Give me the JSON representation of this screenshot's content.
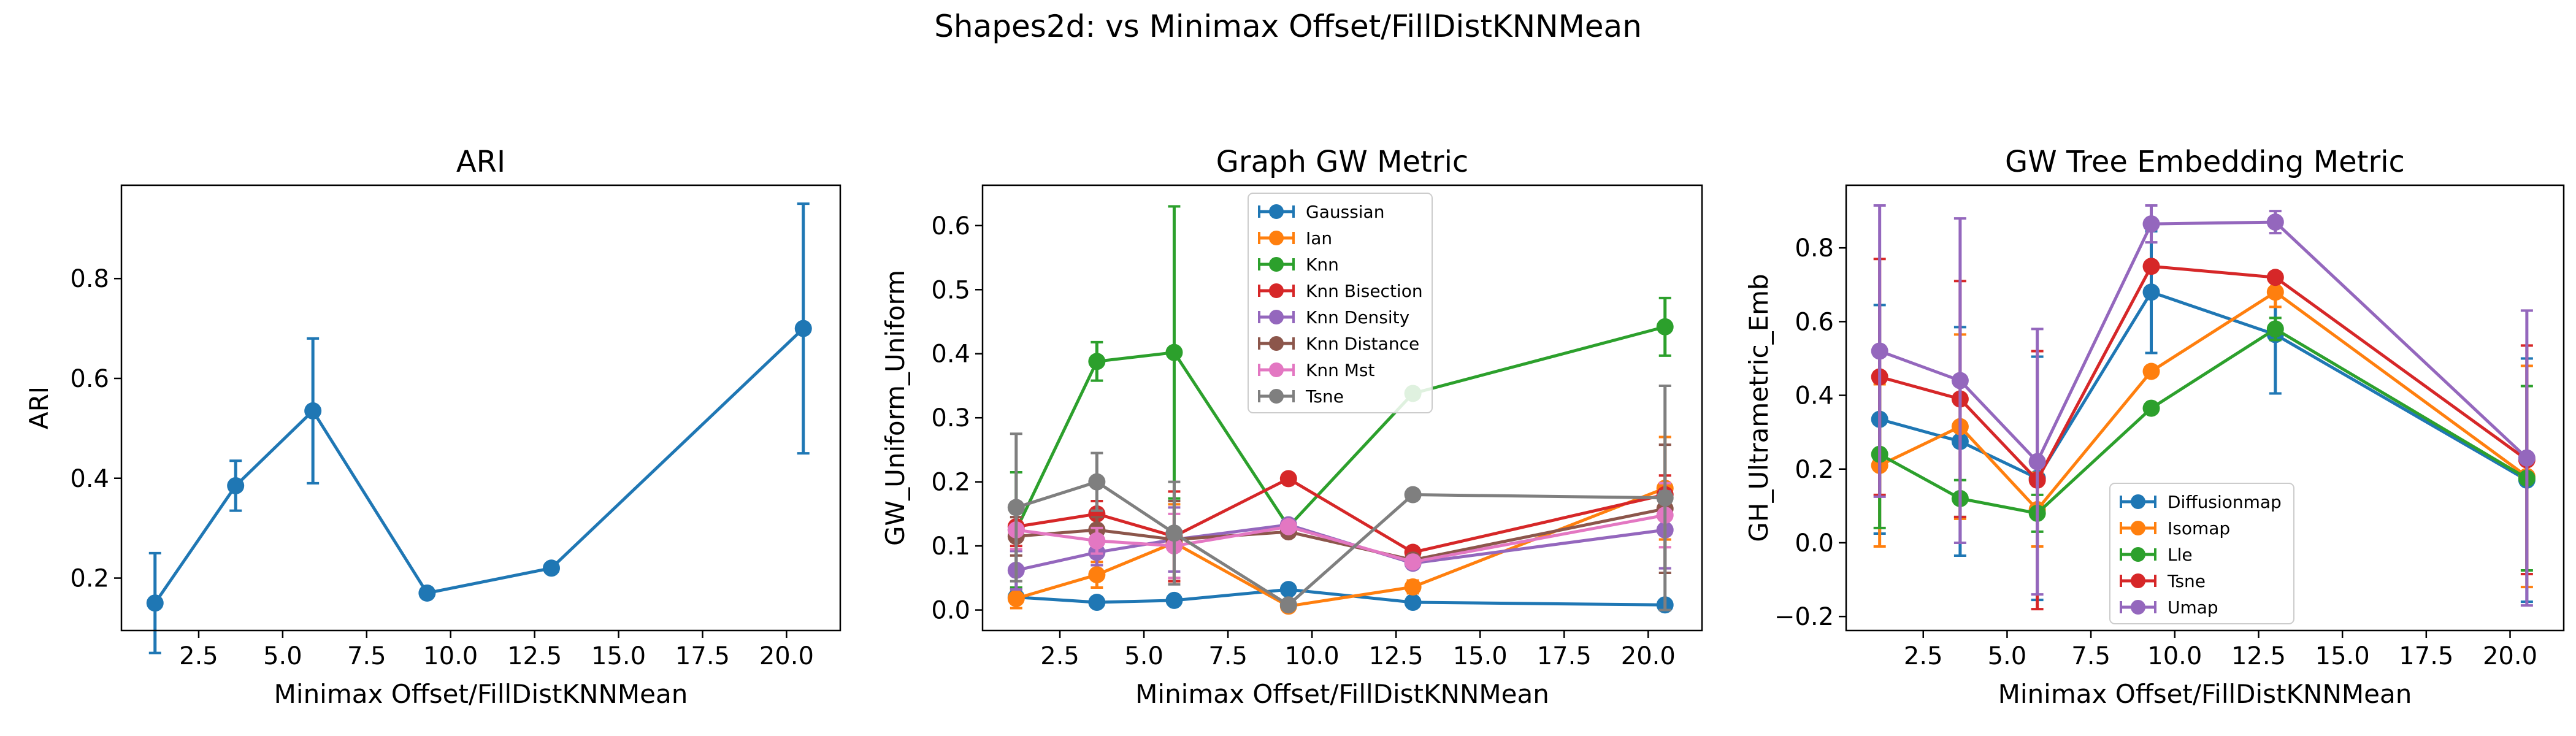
{
  "figure": {
    "suptitle": "Shapes2d: vs Minimax Offset/FillDistKNNMean"
  },
  "chart_data": [
    {
      "type": "line",
      "title": "ARI",
      "xlabel": "Minimax Offset/FillDistKNNMean",
      "ylabel": "ARI",
      "xlim": [
        0.2,
        21.6
      ],
      "ylim": [
        0.095,
        0.987
      ],
      "xticks": [
        2.5,
        5.0,
        7.5,
        10.0,
        12.5,
        15.0,
        17.5,
        20.0
      ],
      "xtick_labels": [
        "2.5",
        "5.0",
        "7.5",
        "10.0",
        "12.5",
        "15.0",
        "17.5",
        "20.0"
      ],
      "yticks": [
        0.2,
        0.4,
        0.6,
        0.8
      ],
      "ytick_labels": [
        "0.2",
        "0.4",
        "0.6",
        "0.8"
      ],
      "grid": false,
      "legend": null,
      "series": [
        {
          "color": "#1f77b4",
          "x": [
            1.2,
            3.6,
            5.9,
            9.3,
            13.0,
            20.5
          ],
          "y": [
            0.15,
            0.385,
            0.535,
            0.17,
            0.22,
            0.7
          ],
          "err": [
            0.1,
            0.05,
            0.145,
            0.0,
            0.0,
            0.25
          ]
        }
      ]
    },
    {
      "type": "line",
      "title": "Graph GW Metric",
      "xlabel": "Minimax Offset/FillDistKNNMean",
      "ylabel": "GW_Uniform_Uniform",
      "xlim": [
        0.2,
        21.6
      ],
      "ylim": [
        -0.032,
        0.663
      ],
      "xticks": [
        2.5,
        5.0,
        7.5,
        10.0,
        12.5,
        15.0,
        17.5,
        20.0
      ],
      "xtick_labels": [
        "2.5",
        "5.0",
        "7.5",
        "10.0",
        "12.5",
        "15.0",
        "17.5",
        "20.0"
      ],
      "yticks": [
        0.0,
        0.1,
        0.2,
        0.3,
        0.4,
        0.5,
        0.6
      ],
      "ytick_labels": [
        "0.0",
        "0.1",
        "0.2",
        "0.3",
        "0.4",
        "0.5",
        "0.6"
      ],
      "grid": false,
      "legend": "top-center",
      "series": [
        {
          "name": "Gaussian",
          "color": "#1f77b4",
          "x": [
            1.2,
            3.6,
            5.9,
            9.3,
            13.0,
            20.5
          ],
          "y": [
            0.02,
            0.012,
            0.015,
            0.032,
            0.012,
            0.008
          ],
          "err": [
            0.005,
            0.004,
            0.004,
            0.005,
            0.003,
            0.003
          ]
        },
        {
          "name": "Ian",
          "color": "#ff7f0e",
          "x": [
            1.2,
            3.6,
            5.9,
            9.3,
            13.0,
            20.5
          ],
          "y": [
            0.018,
            0.055,
            0.105,
            0.006,
            0.036,
            0.19
          ],
          "err": [
            0.015,
            0.02,
            0.06,
            0.005,
            0.01,
            0.08
          ]
        },
        {
          "name": "Knn",
          "color": "#2ca02c",
          "x": [
            1.2,
            3.6,
            5.9,
            9.3,
            13.0,
            20.5
          ],
          "y": [
            0.125,
            0.388,
            0.402,
            0.13,
            0.338,
            0.442
          ],
          "err": [
            0.09,
            0.03,
            0.228,
            0.0,
            0.0,
            0.045
          ]
        },
        {
          "name": "Knn Bisection",
          "color": "#d62728",
          "x": [
            1.2,
            3.6,
            5.9,
            9.3,
            13.0,
            20.5
          ],
          "y": [
            0.13,
            0.15,
            0.115,
            0.205,
            0.09,
            0.18
          ],
          "err": [
            0.03,
            0.02,
            0.07,
            0.0,
            0.0,
            0.03
          ]
        },
        {
          "name": "Knn Density",
          "color": "#9467bd",
          "x": [
            1.2,
            3.6,
            5.9,
            9.3,
            13.0,
            20.5
          ],
          "y": [
            0.062,
            0.09,
            0.11,
            0.133,
            0.073,
            0.125
          ],
          "err": [
            0.03,
            0.02,
            0.05,
            0.0,
            0.0,
            0.06
          ]
        },
        {
          "name": "Knn Distance",
          "color": "#8c564b",
          "x": [
            1.2,
            3.6,
            5.9,
            9.3,
            13.0,
            20.5
          ],
          "y": [
            0.115,
            0.125,
            0.11,
            0.122,
            0.078,
            0.158
          ],
          "err": [
            0.03,
            0.02,
            0.06,
            0.0,
            0.0,
            0.1
          ]
        },
        {
          "name": "Knn Mst",
          "color": "#e377c2",
          "x": [
            1.2,
            3.6,
            5.9,
            9.3,
            13.0,
            20.5
          ],
          "y": [
            0.125,
            0.108,
            0.1,
            0.13,
            0.075,
            0.148
          ],
          "err": [
            0.03,
            0.02,
            0.05,
            0.0,
            0.0,
            0.05
          ]
        },
        {
          "name": "Tsne",
          "color": "#7f7f7f",
          "x": [
            1.2,
            3.6,
            5.9,
            9.3,
            13.0,
            20.5
          ],
          "y": [
            0.16,
            0.2,
            0.12,
            0.008,
            0.18,
            0.175
          ],
          "err": [
            0.115,
            0.045,
            0.08,
            0.0,
            0.0,
            0.175
          ]
        }
      ]
    },
    {
      "type": "line",
      "title": "GW Tree Embedding Metric",
      "xlabel": "Minimax Offset/FillDistKNNMean",
      "ylabel": "GH_Ultrametric_Emb",
      "xlim": [
        0.2,
        21.6
      ],
      "ylim": [
        -0.238,
        0.97
      ],
      "xticks": [
        2.5,
        5.0,
        7.5,
        10.0,
        12.5,
        15.0,
        17.5,
        20.0
      ],
      "xtick_labels": [
        "2.5",
        "5.0",
        "7.5",
        "10.0",
        "12.5",
        "15.0",
        "17.5",
        "20.0"
      ],
      "yticks": [
        -0.2,
        0.0,
        0.2,
        0.4,
        0.6,
        0.8
      ],
      "ytick_labels": [
        "−0.2",
        "0.0",
        "0.2",
        "0.4",
        "0.6",
        "0.8"
      ],
      "grid": false,
      "legend": "lower-center",
      "series": [
        {
          "name": "Diffusionmap",
          "color": "#1f77b4",
          "x": [
            1.2,
            3.6,
            5.9,
            9.3,
            13.0,
            20.5
          ],
          "y": [
            0.335,
            0.275,
            0.175,
            0.68,
            0.565,
            0.17
          ],
          "err": [
            0.31,
            0.31,
            0.33,
            0.165,
            0.16,
            0.33
          ]
        },
        {
          "name": "Isomap",
          "color": "#ff7f0e",
          "x": [
            1.2,
            3.6,
            5.9,
            9.3,
            13.0,
            20.5
          ],
          "y": [
            0.21,
            0.315,
            0.09,
            0.465,
            0.68,
            0.18
          ],
          "err": [
            0.22,
            0.25,
            0.1,
            0.0,
            0.04,
            0.3
          ]
        },
        {
          "name": "Lle",
          "color": "#2ca02c",
          "x": [
            1.2,
            3.6,
            5.9,
            9.3,
            13.0,
            20.5
          ],
          "y": [
            0.24,
            0.12,
            0.08,
            0.365,
            0.58,
            0.175
          ],
          "err": [
            0.2,
            0.05,
            0.05,
            0.0,
            0.03,
            0.25
          ]
        },
        {
          "name": "Tsne",
          "color": "#d62728",
          "x": [
            1.2,
            3.6,
            5.9,
            9.3,
            13.0,
            20.5
          ],
          "y": [
            0.45,
            0.39,
            0.17,
            0.75,
            0.72,
            0.225
          ],
          "err": [
            0.32,
            0.32,
            0.35,
            0.0,
            0.0,
            0.31
          ]
        },
        {
          "name": "Umap",
          "color": "#9467bd",
          "x": [
            1.2,
            3.6,
            5.9,
            9.3,
            13.0,
            20.5
          ],
          "y": [
            0.52,
            0.44,
            0.22,
            0.865,
            0.87,
            0.23
          ],
          "err": [
            0.395,
            0.44,
            0.36,
            0.05,
            0.03,
            0.4
          ]
        }
      ]
    }
  ]
}
